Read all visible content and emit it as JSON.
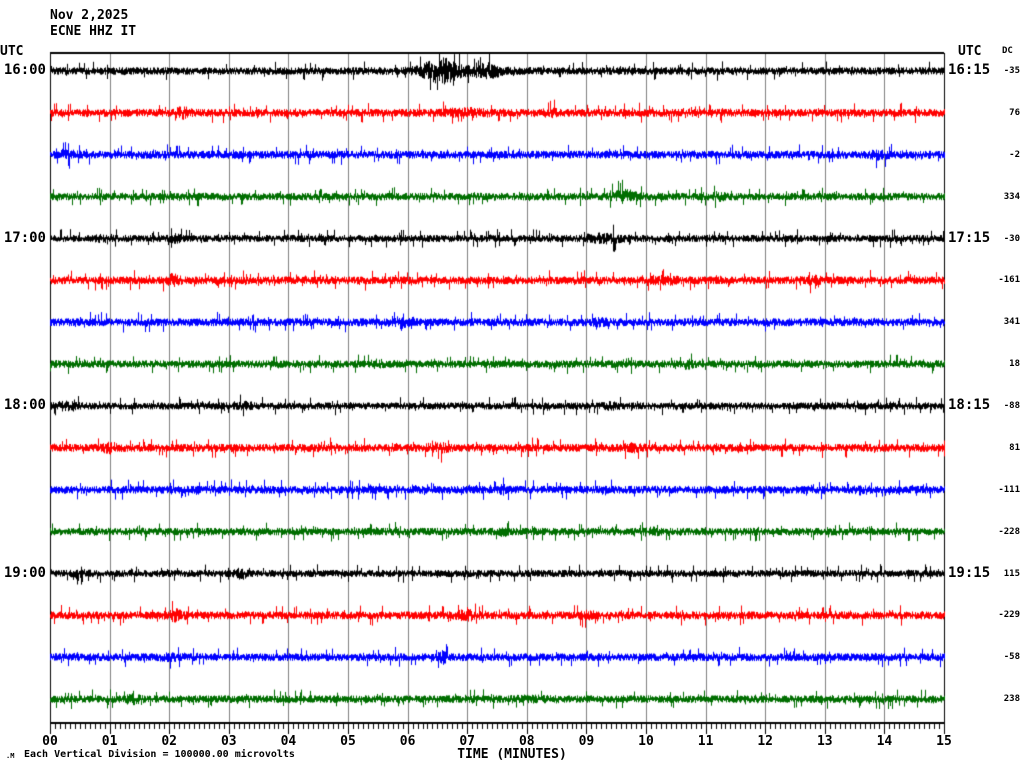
{
  "header": {
    "date": "Nov 2,2025",
    "station": "ECNE HHZ IT"
  },
  "labels": {
    "utc_left": "UTC",
    "utc_right": "UTC",
    "dc_header": "DC"
  },
  "axis": {
    "xlabel": "TIME (MINUTES)",
    "x_ticks": [
      "00",
      "01",
      "02",
      "03",
      "04",
      "05",
      "06",
      "07",
      "08",
      "09",
      "10",
      "11",
      "12",
      "13",
      "14",
      "15"
    ],
    "minor_ticks_per_minute": 12
  },
  "footer": {
    "scale_note": "Each Vertical Division = 100000.00 microvolts",
    "logo_mark": ".M"
  },
  "colors": {
    "trace_cycle": [
      "#000000",
      "#ff0000",
      "#0000ff",
      "#006e00"
    ],
    "grid": "#808080",
    "frame": "#000000",
    "background": "#ffffff"
  },
  "chart_data": {
    "type": "line",
    "title": "ECNE HHZ IT helicorder, Nov 2,2025",
    "xlabel": "TIME (MINUTES)",
    "x_range_minutes": [
      0,
      15
    ],
    "minutes_per_line": 15,
    "lines_per_hour": 4,
    "grid": "vertical-minute-lines",
    "rows": [
      {
        "start": "16:00",
        "end": "16:15",
        "color_index": 0,
        "dc": -35,
        "left_label": "16:00",
        "right_label": "16:15",
        "amp": 3.8,
        "events": [
          [
            6.55,
            0.2,
            3.4
          ],
          [
            7.35,
            0.12,
            2.2
          ],
          [
            6.9,
            0.6,
            1.4
          ]
        ]
      },
      {
        "start": "16:15",
        "end": "16:30",
        "color_index": 1,
        "dc": 76,
        "left_label": null,
        "right_label": null,
        "amp": 4.0,
        "events": [
          [
            2.2,
            0.06,
            2.0
          ],
          [
            7.0,
            0.25,
            1.5
          ],
          [
            8.4,
            0.08,
            1.6
          ]
        ]
      },
      {
        "start": "16:30",
        "end": "16:45",
        "color_index": 2,
        "dc": -2,
        "left_label": null,
        "right_label": null,
        "amp": 4.0,
        "events": [
          [
            0.3,
            0.1,
            1.4
          ],
          [
            13.9,
            0.1,
            1.5
          ]
        ]
      },
      {
        "start": "16:45",
        "end": "17:00",
        "color_index": 3,
        "dc": 334,
        "left_label": null,
        "right_label": null,
        "amp": 3.8,
        "events": [
          [
            9.65,
            0.15,
            2.1
          ],
          [
            11.2,
            0.08,
            1.5
          ]
        ]
      },
      {
        "start": "17:00",
        "end": "17:15",
        "color_index": 0,
        "dc": -30,
        "left_label": "17:00",
        "right_label": "17:15",
        "amp": 3.6,
        "events": [
          [
            9.3,
            0.18,
            1.8
          ],
          [
            0.9,
            0.08,
            1.5
          ],
          [
            2.1,
            0.06,
            1.6
          ]
        ]
      },
      {
        "start": "17:15",
        "end": "17:30",
        "color_index": 1,
        "dc": -161,
        "left_label": null,
        "right_label": null,
        "amp": 4.0,
        "events": [
          [
            2.05,
            0.08,
            1.9
          ],
          [
            10.3,
            0.12,
            1.6
          ],
          [
            12.8,
            0.08,
            1.5
          ]
        ]
      },
      {
        "start": "17:30",
        "end": "17:45",
        "color_index": 2,
        "dc": 341,
        "left_label": null,
        "right_label": null,
        "amp": 4.0,
        "events": [
          [
            5.9,
            0.06,
            2.3
          ],
          [
            9.2,
            0.1,
            1.4
          ]
        ]
      },
      {
        "start": "17:45",
        "end": "18:00",
        "color_index": 3,
        "dc": 18,
        "left_label": null,
        "right_label": null,
        "amp": 3.8,
        "events": [
          [
            5.5,
            0.08,
            1.5
          ],
          [
            10.7,
            0.06,
            1.7
          ]
        ]
      },
      {
        "start": "18:00",
        "end": "18:15",
        "color_index": 0,
        "dc": -88,
        "left_label": "18:00",
        "right_label": "18:15",
        "amp": 3.6,
        "events": [
          [
            0.25,
            0.12,
            1.6
          ],
          [
            3.3,
            0.08,
            1.6
          ],
          [
            9.4,
            0.1,
            1.4
          ]
        ]
      },
      {
        "start": "18:15",
        "end": "18:30",
        "color_index": 1,
        "dc": 81,
        "left_label": null,
        "right_label": null,
        "amp": 4.0,
        "events": [
          [
            1.0,
            0.08,
            1.7
          ],
          [
            6.5,
            0.12,
            1.6
          ],
          [
            9.8,
            0.1,
            1.5
          ]
        ]
      },
      {
        "start": "18:30",
        "end": "18:45",
        "color_index": 2,
        "dc": -111,
        "left_label": null,
        "right_label": null,
        "amp": 4.0,
        "events": [
          [
            7.6,
            0.04,
            1.6
          ],
          [
            13.6,
            0.08,
            1.5
          ]
        ]
      },
      {
        "start": "18:45",
        "end": "19:00",
        "color_index": 3,
        "dc": -228,
        "left_label": null,
        "right_label": null,
        "amp": 3.8,
        "events": [
          [
            7.6,
            0.05,
            1.5
          ],
          [
            10.1,
            0.08,
            1.4
          ]
        ]
      },
      {
        "start": "19:00",
        "end": "19:15",
        "color_index": 0,
        "dc": 115,
        "left_label": "19:00",
        "right_label": "19:15",
        "amp": 3.6,
        "events": [
          [
            3.2,
            0.06,
            2.0
          ],
          [
            0.5,
            0.1,
            1.3
          ]
        ]
      },
      {
        "start": "19:15",
        "end": "19:30",
        "color_index": 1,
        "dc": -229,
        "left_label": null,
        "right_label": null,
        "amp": 4.0,
        "events": [
          [
            2.1,
            0.1,
            1.8
          ],
          [
            7.0,
            0.12,
            1.7
          ],
          [
            9.0,
            0.08,
            1.4
          ]
        ]
      },
      {
        "start": "19:30",
        "end": "19:45",
        "color_index": 2,
        "dc": -58,
        "left_label": null,
        "right_label": null,
        "amp": 4.0,
        "events": [
          [
            6.6,
            0.04,
            2.0
          ],
          [
            2.0,
            0.1,
            1.3
          ]
        ]
      },
      {
        "start": "19:45",
        "end": "20:00",
        "color_index": 3,
        "dc": 238,
        "left_label": null,
        "right_label": null,
        "amp": 3.8,
        "events": [
          [
            1.4,
            0.08,
            1.6
          ],
          [
            8.0,
            0.25,
            1.25
          ]
        ]
      }
    ]
  }
}
